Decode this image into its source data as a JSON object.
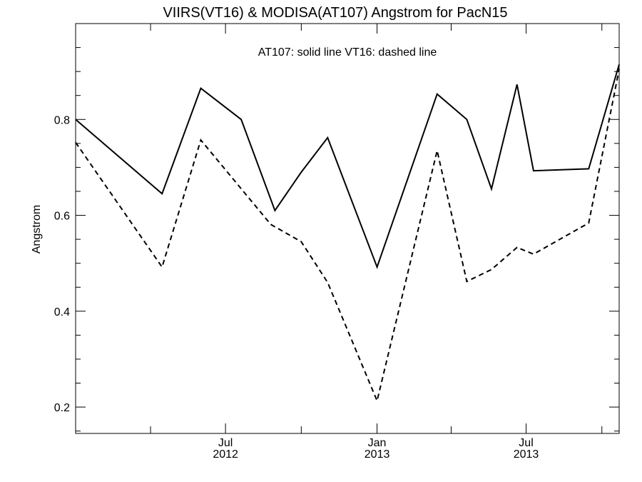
{
  "chart_data": {
    "type": "line",
    "title": "VIIRS(VT16) & MODISA(AT107)  Angstrom for PacN15",
    "ylabel": "Angstrom",
    "xlabel": "",
    "annotation": "AT107: solid line   VT16: dashed line",
    "ylim": [
      0.145,
      1.0
    ],
    "yticks": [
      0.2,
      0.4,
      0.6,
      0.8
    ],
    "xlim": [
      "2012-01-01",
      "2013-10-22"
    ],
    "xticks": [
      {
        "date": "2012-07-01",
        "month": "Jul",
        "year": "2012"
      },
      {
        "date": "2013-01-01",
        "month": "Jan",
        "year": "2013"
      },
      {
        "date": "2013-07-01",
        "month": "Jul",
        "year": "2013"
      }
    ],
    "grid": false,
    "series": [
      {
        "name": "AT107",
        "style": "solid",
        "color": "#000000",
        "points": [
          {
            "x": "2012-01-01",
            "y": 0.8
          },
          {
            "x": "2012-04-15",
            "y": 0.645
          },
          {
            "x": "2012-06-01",
            "y": 0.865
          },
          {
            "x": "2012-07-20",
            "y": 0.8
          },
          {
            "x": "2012-08-30",
            "y": 0.61
          },
          {
            "x": "2012-10-01",
            "y": 0.69
          },
          {
            "x": "2012-11-02",
            "y": 0.762
          },
          {
            "x": "2013-01-01",
            "y": 0.492
          },
          {
            "x": "2013-03-15",
            "y": 0.853
          },
          {
            "x": "2013-04-20",
            "y": 0.8
          },
          {
            "x": "2013-05-20",
            "y": 0.655
          },
          {
            "x": "2013-06-20",
            "y": 0.873
          },
          {
            "x": "2013-07-10",
            "y": 0.693
          },
          {
            "x": "2013-09-15",
            "y": 0.697
          },
          {
            "x": "2013-10-22",
            "y": 0.915
          }
        ]
      },
      {
        "name": "VT16",
        "style": "dashed",
        "color": "#000000",
        "points": [
          {
            "x": "2012-01-01",
            "y": 0.752
          },
          {
            "x": "2012-04-15",
            "y": 0.492
          },
          {
            "x": "2012-06-01",
            "y": 0.757
          },
          {
            "x": "2012-08-25",
            "y": 0.581
          },
          {
            "x": "2012-10-01",
            "y": 0.545
          },
          {
            "x": "2012-11-02",
            "y": 0.46
          },
          {
            "x": "2013-01-01",
            "y": 0.213
          },
          {
            "x": "2013-03-15",
            "y": 0.735
          },
          {
            "x": "2013-04-20",
            "y": 0.462
          },
          {
            "x": "2013-05-20",
            "y": 0.487
          },
          {
            "x": "2013-06-20",
            "y": 0.533
          },
          {
            "x": "2013-07-10",
            "y": 0.519
          },
          {
            "x": "2013-09-15",
            "y": 0.584
          },
          {
            "x": "2013-10-22",
            "y": 0.905
          }
        ]
      }
    ]
  }
}
